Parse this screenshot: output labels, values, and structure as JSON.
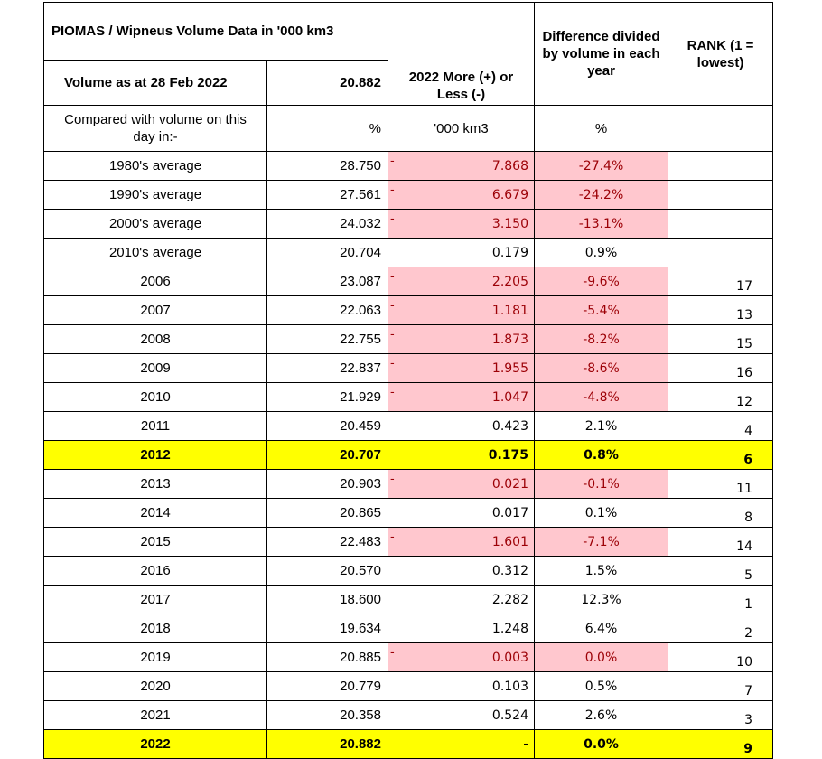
{
  "header": {
    "title": "PIOMAS / Wipneus Volume Data in '000 km3",
    "diff_header": "Difference divided by volume in each year",
    "rank_header": "RANK (1 = lowest)",
    "volume_label": "Volume as at 28 Feb 2022",
    "volume_value": "20.882",
    "more_less_header": "2022 More (+) or Less (-)",
    "compared_label": "Compared with volume on this day in:-",
    "unit_pct": "%",
    "unit_km3": "'000 km3",
    "unit_pct2": "%"
  },
  "rows": [
    {
      "label": "1980's average",
      "volume": "28.750",
      "diff": "7.868",
      "pct": "-27.4%",
      "rank": "",
      "negative": true,
      "highlight": false
    },
    {
      "label": "1990's average",
      "volume": "27.561",
      "diff": "6.679",
      "pct": "-24.2%",
      "rank": "",
      "negative": true,
      "highlight": false
    },
    {
      "label": "2000's average",
      "volume": "24.032",
      "diff": "3.150",
      "pct": "-13.1%",
      "rank": "",
      "negative": true,
      "highlight": false
    },
    {
      "label": "2010's average",
      "volume": "20.704",
      "diff": "0.179",
      "pct": "0.9%",
      "rank": "",
      "negative": false,
      "highlight": false
    },
    {
      "label": "2006",
      "volume": "23.087",
      "diff": "2.205",
      "pct": "-9.6%",
      "rank": "17",
      "negative": true,
      "highlight": false
    },
    {
      "label": "2007",
      "volume": "22.063",
      "diff": "1.181",
      "pct": "-5.4%",
      "rank": "13",
      "negative": true,
      "highlight": false
    },
    {
      "label": "2008",
      "volume": "22.755",
      "diff": "1.873",
      "pct": "-8.2%",
      "rank": "15",
      "negative": true,
      "highlight": false
    },
    {
      "label": "2009",
      "volume": "22.837",
      "diff": "1.955",
      "pct": "-8.6%",
      "rank": "16",
      "negative": true,
      "highlight": false
    },
    {
      "label": "2010",
      "volume": "21.929",
      "diff": "1.047",
      "pct": "-4.8%",
      "rank": "12",
      "negative": true,
      "highlight": false
    },
    {
      "label": "2011",
      "volume": "20.459",
      "diff": "0.423",
      "pct": "2.1%",
      "rank": "4",
      "negative": false,
      "highlight": false
    },
    {
      "label": "2012",
      "volume": "20.707",
      "diff": "0.175",
      "pct": "0.8%",
      "rank": "6",
      "negative": false,
      "highlight": true
    },
    {
      "label": "2013",
      "volume": "20.903",
      "diff": "0.021",
      "pct": "-0.1%",
      "rank": "11",
      "negative": true,
      "highlight": false
    },
    {
      "label": "2014",
      "volume": "20.865",
      "diff": "0.017",
      "pct": "0.1%",
      "rank": "8",
      "negative": false,
      "highlight": false
    },
    {
      "label": "2015",
      "volume": "22.483",
      "diff": "1.601",
      "pct": "-7.1%",
      "rank": "14",
      "negative": true,
      "highlight": false
    },
    {
      "label": "2016",
      "volume": "20.570",
      "diff": "0.312",
      "pct": "1.5%",
      "rank": "5",
      "negative": false,
      "highlight": false
    },
    {
      "label": "2017",
      "volume": "18.600",
      "diff": "2.282",
      "pct": "12.3%",
      "rank": "1",
      "negative": false,
      "highlight": false
    },
    {
      "label": "2018",
      "volume": "19.634",
      "diff": "1.248",
      "pct": "6.4%",
      "rank": "2",
      "negative": false,
      "highlight": false
    },
    {
      "label": "2019",
      "volume": "20.885",
      "diff": "0.003",
      "pct": "0.0%",
      "rank": "10",
      "negative": true,
      "highlight": false
    },
    {
      "label": "2020",
      "volume": "20.779",
      "diff": "0.103",
      "pct": "0.5%",
      "rank": "7",
      "negative": false,
      "highlight": false
    },
    {
      "label": "2021",
      "volume": "20.358",
      "diff": "0.524",
      "pct": "2.6%",
      "rank": "3",
      "negative": false,
      "highlight": false
    },
    {
      "label": "2022",
      "volume": "20.882",
      "diff": "-",
      "pct": "0.0%",
      "rank": "9",
      "negative": false,
      "highlight": true
    }
  ],
  "negative_marker": "-",
  "colors": {
    "negative_fill": "#ffc7ce",
    "negative_text": "#9c0006",
    "highlight": "#ffff00"
  }
}
